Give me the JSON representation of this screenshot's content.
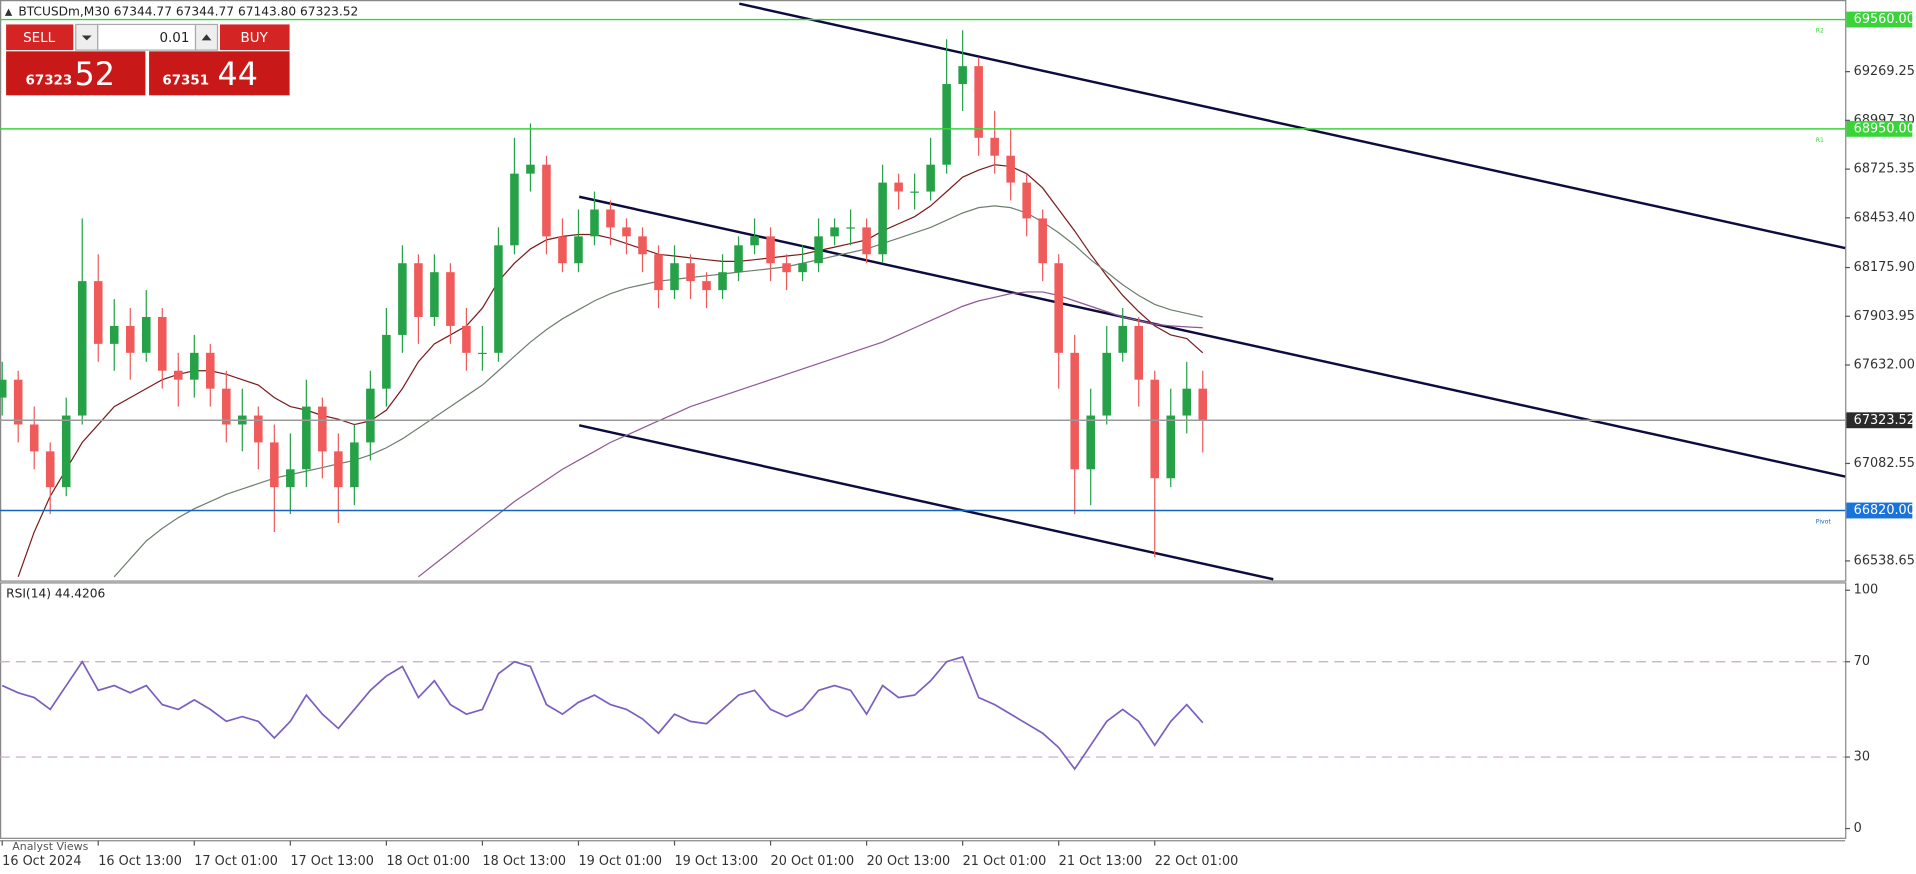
{
  "symbol_info": "BTCUSDm,M30  67344.77 67344.77 67143.80 67323.52",
  "trade_panel": {
    "sell": "SELL",
    "buy": "BUY",
    "volume": "0.01",
    "bid_main": "67323",
    "bid_pips": "52",
    "ask_main": "67351",
    "ask_pips": "44"
  },
  "analyst_views": "Analyst Views",
  "chart_data": [
    {
      "type": "candlestick",
      "categories": [
        "16 Oct 2024",
        null,
        null,
        null,
        null,
        null,
        "16 Oct 13:00",
        null,
        null,
        null,
        null,
        null,
        "17 Oct 01:00",
        null,
        null,
        null,
        null,
        null,
        "17 Oct 13:00",
        null,
        null,
        null,
        null,
        null,
        "18 Oct 01:00",
        null,
        null,
        null,
        null,
        null,
        "18 Oct 13:00",
        null,
        null,
        null,
        null,
        null,
        "19 Oct 01:00",
        null,
        null,
        null,
        null,
        null,
        "19 Oct 13:00",
        null,
        null,
        null,
        null,
        null,
        "20 Oct 01:00",
        null,
        null,
        null,
        null,
        null,
        "20 Oct 13:00",
        null,
        null,
        null,
        null,
        null,
        "21 Oct 01:00",
        null,
        null,
        null,
        null,
        null,
        "21 Oct 13:00",
        null,
        null,
        null,
        null,
        null,
        "22 Oct 01:00",
        null,
        null,
        null
      ],
      "open": [
        67450,
        67550,
        67300,
        67150,
        66950,
        67350,
        68100,
        67750,
        67850,
        67700,
        67900,
        67600,
        67550,
        67700,
        67500,
        67300,
        67350,
        67200,
        66950,
        67050,
        67400,
        67150,
        66950,
        67200,
        67500,
        67800,
        68200,
        67900,
        68150,
        67850,
        67700,
        67700,
        68300,
        68700,
        68750,
        68350,
        68200,
        68350,
        68500,
        68400,
        68350,
        68250,
        68050,
        68200,
        68100,
        68050,
        68150,
        68300,
        68350,
        68200,
        68150,
        68200,
        68350,
        68400,
        68400,
        68250,
        68650,
        68600,
        68600,
        68750,
        69200,
        69300,
        68900,
        68800,
        68650,
        68450,
        68200,
        67700,
        67050,
        67350,
        67700,
        67850,
        67550,
        67000,
        67350,
        67500
      ],
      "high": [
        67650,
        67600,
        67400,
        67200,
        67450,
        68450,
        68250,
        68000,
        67950,
        68050,
        67950,
        67700,
        67800,
        67750,
        67600,
        67500,
        67400,
        67300,
        67250,
        67550,
        67450,
        67250,
        67300,
        67600,
        67950,
        68300,
        68250,
        68250,
        68200,
        67950,
        67850,
        68400,
        68900,
        68980,
        68800,
        68450,
        68500,
        68600,
        68550,
        68450,
        68400,
        68300,
        68300,
        68250,
        68150,
        68250,
        68350,
        68450,
        68400,
        68250,
        68300,
        68450,
        68450,
        68500,
        68450,
        68750,
        68700,
        68700,
        68900,
        69450,
        69500,
        69350,
        69050,
        68950,
        68700,
        68500,
        68250,
        67800,
        67500,
        67850,
        67950,
        67900,
        67600,
        67500,
        67650,
        67600
      ],
      "low": [
        67350,
        67200,
        67050,
        66800,
        66900,
        67300,
        67650,
        67600,
        67550,
        67650,
        67500,
        67400,
        67450,
        67400,
        67200,
        67150,
        67050,
        66700,
        66800,
        66950,
        67000,
        66750,
        66850,
        67100,
        67400,
        67700,
        67750,
        67850,
        67750,
        67600,
        67600,
        67650,
        68250,
        68600,
        68250,
        68150,
        68150,
        68300,
        68300,
        68250,
        68150,
        67950,
        68000,
        68000,
        67950,
        68000,
        68100,
        68250,
        68100,
        68050,
        68100,
        68150,
        68300,
        68300,
        68200,
        68200,
        68500,
        68500,
        68550,
        68700,
        69050,
        68800,
        68700,
        68550,
        68350,
        68100,
        67500,
        66800,
        66850,
        67300,
        67650,
        67400,
        66560,
        66950,
        67250,
        67143.8
      ],
      "close": [
        67550,
        67300,
        67150,
        66950,
        67350,
        68100,
        67750,
        67850,
        67700,
        67900,
        67600,
        67550,
        67700,
        67500,
        67300,
        67350,
        67200,
        66950,
        67050,
        67400,
        67150,
        66950,
        67200,
        67500,
        67800,
        68200,
        67900,
        68150,
        67850,
        67700,
        67700,
        68300,
        68700,
        68750,
        68350,
        68200,
        68350,
        68500,
        68400,
        68350,
        68250,
        68050,
        68200,
        68100,
        68050,
        68150,
        68300,
        68350,
        68200,
        68150,
        68200,
        68350,
        68400,
        68400,
        68250,
        68650,
        68600,
        68600,
        68750,
        69200,
        69300,
        68900,
        68800,
        68650,
        68450,
        68200,
        67700,
        67050,
        67350,
        67700,
        67850,
        67550,
        67000,
        67350,
        67500,
        67323.52
      ],
      "up_color": "#26a148",
      "down_color": "#ef5b5b",
      "series": [
        {
          "color": "#7a1c1c",
          "values": [
            null,
            66450,
            66700,
            66900,
            67050,
            67200,
            67300,
            67400,
            67450,
            67500,
            67550,
            67580,
            67600,
            67600,
            67580,
            67550,
            67520,
            67450,
            67400,
            67380,
            67350,
            67330,
            67300,
            67320,
            67380,
            67500,
            67650,
            67750,
            67800,
            67850,
            67950,
            68100,
            68200,
            68280,
            68330,
            68350,
            68360,
            68360,
            68340,
            68310,
            68280,
            68250,
            68240,
            68230,
            68220,
            68210,
            68210,
            68220,
            68230,
            68240,
            68250,
            68270,
            68290,
            68310,
            68330,
            68380,
            68420,
            68460,
            68520,
            68600,
            68680,
            68720,
            68750,
            68740,
            68700,
            68620,
            68500,
            68380,
            68250,
            68130,
            68020,
            67930,
            67850,
            67800,
            67780,
            67700
          ]
        },
        {
          "color": "#6f7f6f",
          "values": [
            null,
            null,
            null,
            null,
            null,
            null,
            null,
            66450,
            66550,
            66650,
            66720,
            66780,
            66830,
            66870,
            66910,
            66940,
            66970,
            67000,
            67020,
            67040,
            67060,
            67080,
            67100,
            67130,
            67170,
            67220,
            67280,
            67340,
            67400,
            67460,
            67520,
            67600,
            67680,
            67760,
            67830,
            67890,
            67940,
            67990,
            68030,
            68060,
            68080,
            68100,
            68110,
            68120,
            68130,
            68140,
            68150,
            68160,
            68170,
            68180,
            68200,
            68220,
            68240,
            68260,
            68280,
            68310,
            68340,
            68370,
            68400,
            68440,
            68480,
            68510,
            68520,
            68510,
            68480,
            68430,
            68370,
            68300,
            68220,
            68150,
            68080,
            68020,
            67970,
            67940,
            67920,
            67900
          ]
        },
        {
          "color": "#8e5a8e",
          "values": [
            null,
            null,
            null,
            null,
            null,
            null,
            null,
            null,
            null,
            null,
            null,
            null,
            null,
            null,
            null,
            null,
            null,
            null,
            null,
            null,
            null,
            null,
            null,
            null,
            null,
            null,
            66450,
            66520,
            66590,
            66660,
            66730,
            66800,
            66870,
            66930,
            66990,
            67050,
            67100,
            67150,
            67200,
            67240,
            67280,
            67320,
            67360,
            67400,
            67430,
            67460,
            67490,
            67520,
            67550,
            67580,
            67610,
            67640,
            67670,
            67700,
            67730,
            67760,
            67800,
            67840,
            67880,
            67920,
            67960,
            67990,
            68010,
            68030,
            68040,
            68040,
            68020,
            67990,
            67960,
            67930,
            67900,
            67880,
            67860,
            67850,
            67845,
            67840
          ]
        }
      ],
      "ylim": [
        66436.3,
        69669.1
      ],
      "yticks": [
        69269.25,
        {
          "value": 68997.3,
          "label": "68997.30"
        },
        68725.35,
        {
          "value": 68453.4,
          "label": "68453.40"
        },
        {
          "value": 68175.9,
          "label": "68175.90"
        },
        67903.95,
        {
          "value": 67632,
          "label": "67632.00"
        },
        67082.55,
        66538.65
      ],
      "grid": false,
      "levels": [
        {
          "value": 69560,
          "label": "69560.00",
          "tag": "R2",
          "color": "#3ad43a",
          "box_color": "#3ad43a"
        },
        {
          "value": 68950,
          "label": "68950.00",
          "tag": "R1",
          "color": "#3ad43a",
          "box_color": "#3ad43a"
        },
        {
          "value": 66820,
          "label": "66820.00",
          "tag": "Pivot",
          "color": "#1664c0",
          "box_color": "#1a73d9"
        },
        {
          "value": 67323.52,
          "label": "67323.52",
          "color": "#9a9a9a",
          "box_color": "#2b2b2b"
        }
      ]
    },
    {
      "type": "line",
      "title": "RSI(14) 44.4206",
      "series": [
        {
          "color": "#7b5fc0",
          "values": [
            60,
            57,
            55,
            50,
            60,
            70,
            58,
            60,
            57,
            60,
            52,
            50,
            54,
            50,
            45,
            47,
            45,
            38,
            45,
            56,
            48,
            42,
            50,
            58,
            64,
            68,
            55,
            62,
            52,
            48,
            50,
            65,
            70,
            68,
            52,
            48,
            53,
            56,
            52,
            50,
            46,
            40,
            48,
            45,
            44,
            50,
            56,
            58,
            50,
            47,
            50,
            58,
            60,
            58,
            48,
            60,
            55,
            56,
            62,
            70,
            72,
            55,
            52,
            48,
            44,
            40,
            34,
            25,
            35,
            45,
            50,
            45,
            35,
            45,
            52,
            44.4206
          ]
        }
      ],
      "ylim": [
        -3.59,
        103.08
      ],
      "yticks": [
        0,
        30,
        70,
        100
      ],
      "levels": [
        30,
        70
      ],
      "grid": false
    }
  ]
}
